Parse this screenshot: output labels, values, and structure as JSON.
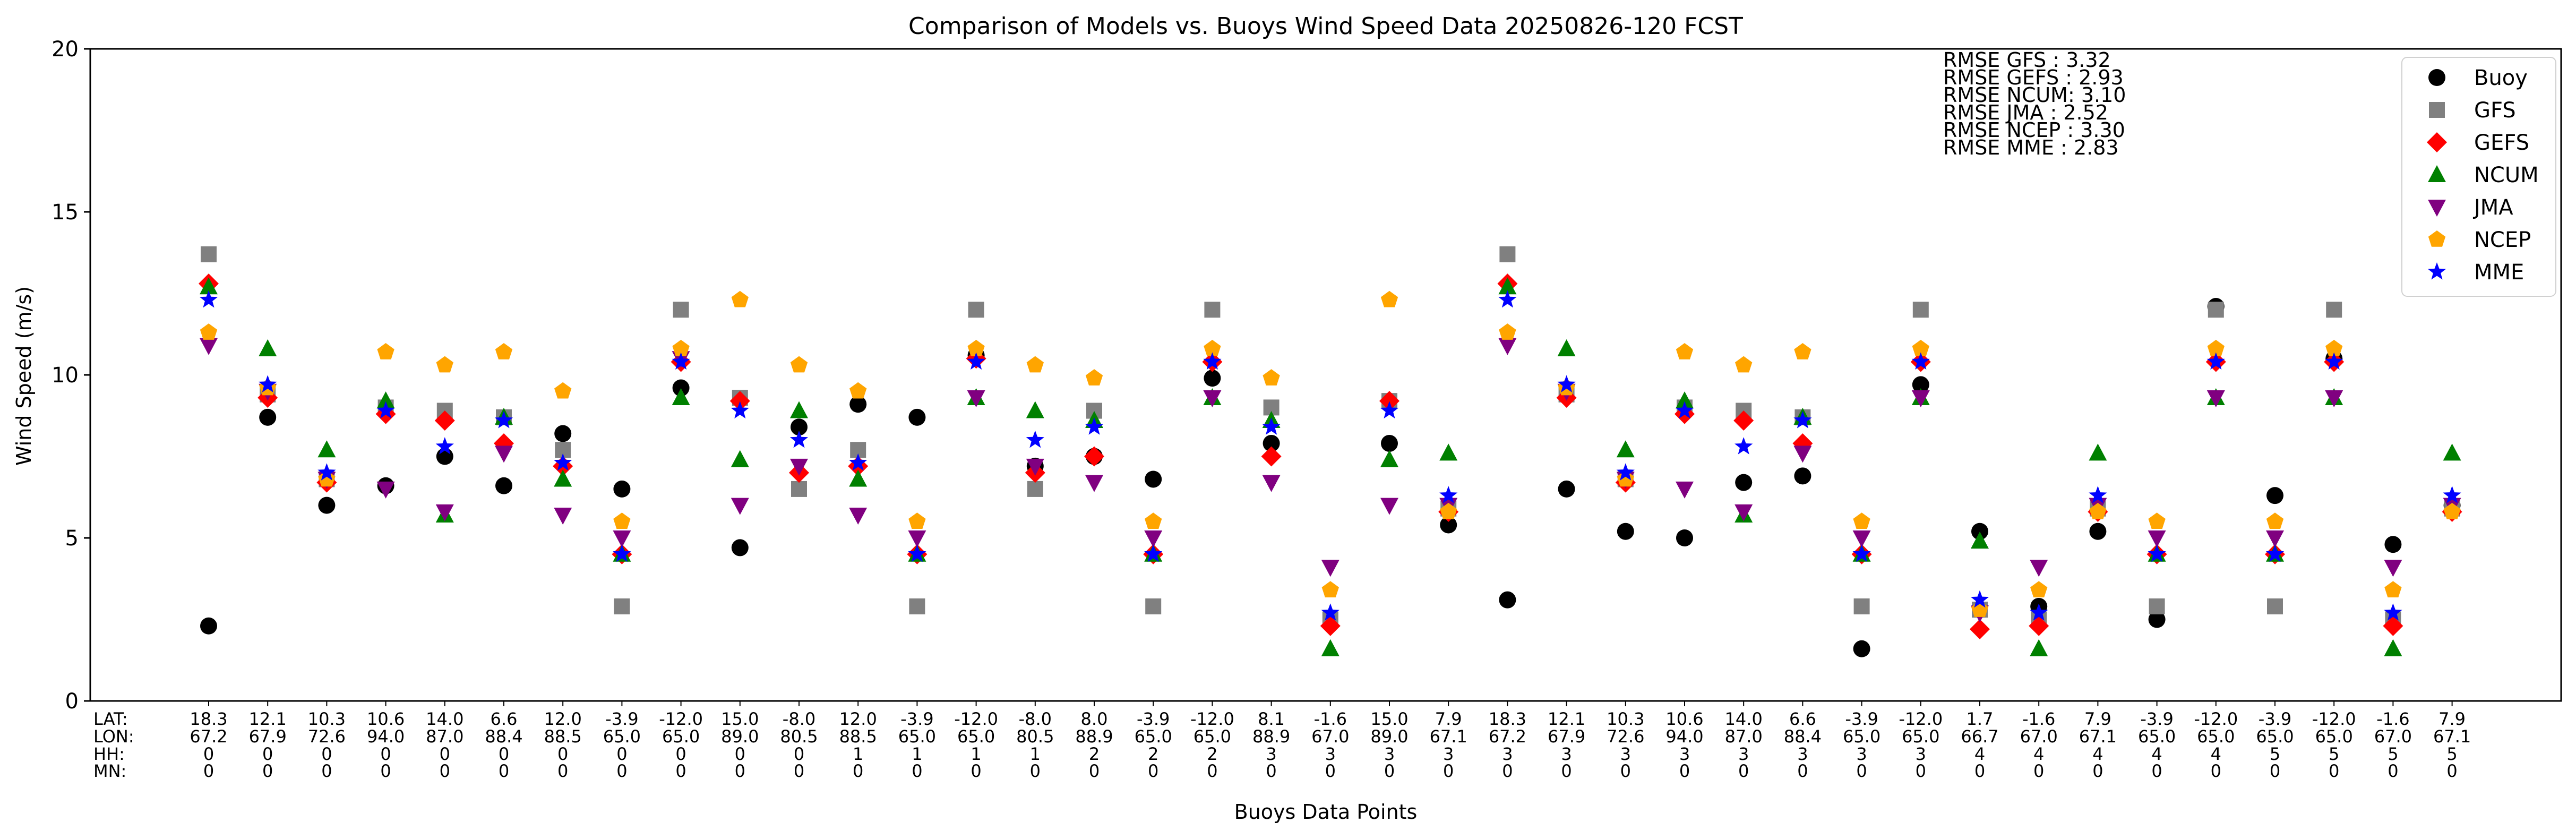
{
  "chart_data": {
    "type": "scatter",
    "title": "Comparison of Models vs. Buoys Wind Speed Data 20250826-120 FCST",
    "xlabel": "Buoys Data Points",
    "ylabel": "Wind Speed (m/s)",
    "ylim": [
      0,
      20
    ],
    "yticks": [
      "0",
      "5",
      "10",
      "15",
      "20"
    ],
    "grid": false,
    "legend_position": "top-right",
    "row_labels": [
      "LAT:",
      "LON:",
      "HH:",
      "MN:"
    ],
    "points": [
      {
        "lat": "18.3",
        "lon": "67.2",
        "hh": "0",
        "mn": "0"
      },
      {
        "lat": "12.1",
        "lon": "67.9",
        "hh": "0",
        "mn": "0"
      },
      {
        "lat": "10.3",
        "lon": "72.6",
        "hh": "0",
        "mn": "0"
      },
      {
        "lat": "10.6",
        "lon": "94.0",
        "hh": "0",
        "mn": "0"
      },
      {
        "lat": "14.0",
        "lon": "87.0",
        "hh": "0",
        "mn": "0"
      },
      {
        "lat": "6.6",
        "lon": "88.4",
        "hh": "0",
        "mn": "0"
      },
      {
        "lat": "12.0",
        "lon": "88.5",
        "hh": "0",
        "mn": "0"
      },
      {
        "lat": "-3.9",
        "lon": "65.0",
        "hh": "0",
        "mn": "0"
      },
      {
        "lat": "-12.0",
        "lon": "65.0",
        "hh": "0",
        "mn": "0"
      },
      {
        "lat": "15.0",
        "lon": "89.0",
        "hh": "0",
        "mn": "0"
      },
      {
        "lat": "-8.0",
        "lon": "80.5",
        "hh": "0",
        "mn": "0"
      },
      {
        "lat": "12.0",
        "lon": "88.5",
        "hh": "1",
        "mn": "0"
      },
      {
        "lat": "-3.9",
        "lon": "65.0",
        "hh": "1",
        "mn": "0"
      },
      {
        "lat": "-12.0",
        "lon": "65.0",
        "hh": "1",
        "mn": "0"
      },
      {
        "lat": "-8.0",
        "lon": "80.5",
        "hh": "1",
        "mn": "0"
      },
      {
        "lat": "8.0",
        "lon": "88.9",
        "hh": "2",
        "mn": "0"
      },
      {
        "lat": "-3.9",
        "lon": "65.0",
        "hh": "2",
        "mn": "0"
      },
      {
        "lat": "-12.0",
        "lon": "65.0",
        "hh": "2",
        "mn": "0"
      },
      {
        "lat": "8.1",
        "lon": "88.9",
        "hh": "3",
        "mn": "0"
      },
      {
        "lat": "-1.6",
        "lon": "67.0",
        "hh": "3",
        "mn": "0"
      },
      {
        "lat": "15.0",
        "lon": "89.0",
        "hh": "3",
        "mn": "0"
      },
      {
        "lat": "7.9",
        "lon": "67.1",
        "hh": "3",
        "mn": "0"
      },
      {
        "lat": "18.3",
        "lon": "67.2",
        "hh": "3",
        "mn": "0"
      },
      {
        "lat": "12.1",
        "lon": "67.9",
        "hh": "3",
        "mn": "0"
      },
      {
        "lat": "10.3",
        "lon": "72.6",
        "hh": "3",
        "mn": "0"
      },
      {
        "lat": "10.6",
        "lon": "94.0",
        "hh": "3",
        "mn": "0"
      },
      {
        "lat": "14.0",
        "lon": "87.0",
        "hh": "3",
        "mn": "0"
      },
      {
        "lat": "6.6",
        "lon": "88.4",
        "hh": "3",
        "mn": "0"
      },
      {
        "lat": "-3.9",
        "lon": "65.0",
        "hh": "3",
        "mn": "0"
      },
      {
        "lat": "-12.0",
        "lon": "65.0",
        "hh": "3",
        "mn": "0"
      },
      {
        "lat": "1.7",
        "lon": "66.7",
        "hh": "4",
        "mn": "0"
      },
      {
        "lat": "-1.6",
        "lon": "67.0",
        "hh": "4",
        "mn": "0"
      },
      {
        "lat": "7.9",
        "lon": "67.1",
        "hh": "4",
        "mn": "0"
      },
      {
        "lat": "-3.9",
        "lon": "65.0",
        "hh": "4",
        "mn": "0"
      },
      {
        "lat": "-12.0",
        "lon": "65.0",
        "hh": "4",
        "mn": "0"
      },
      {
        "lat": "-3.9",
        "lon": "65.0",
        "hh": "5",
        "mn": "0"
      },
      {
        "lat": "-12.0",
        "lon": "65.0",
        "hh": "5",
        "mn": "0"
      },
      {
        "lat": "-1.6",
        "lon": "67.0",
        "hh": "5",
        "mn": "0"
      },
      {
        "lat": "7.9",
        "lon": "67.1",
        "hh": "5",
        "mn": "0"
      }
    ],
    "series": [
      {
        "name": "Buoy",
        "marker": "circle",
        "color": "#000000",
        "values": [
          2.3,
          8.7,
          6.0,
          6.6,
          7.5,
          6.6,
          8.2,
          6.5,
          9.6,
          4.7,
          8.4,
          9.1,
          8.7,
          10.6,
          7.2,
          7.5,
          6.8,
          9.9,
          7.9,
          null,
          7.9,
          5.4,
          3.1,
          6.5,
          5.2,
          5.0,
          6.7,
          6.9,
          1.6,
          9.7,
          5.2,
          2.9,
          5.2,
          2.5,
          12.1,
          6.3,
          10.5,
          4.8,
          6.0
        ]
      },
      {
        "name": "GFS",
        "marker": "square",
        "color": "#808080",
        "values": [
          13.7,
          9.4,
          6.8,
          9.0,
          8.9,
          8.7,
          7.7,
          2.9,
          12.0,
          9.3,
          6.5,
          7.7,
          2.9,
          12.0,
          6.5,
          8.9,
          2.9,
          12.0,
          9.0,
          2.5,
          9.2,
          5.9,
          13.7,
          9.4,
          6.8,
          9.0,
          8.9,
          8.7,
          2.9,
          12.0,
          2.8,
          2.5,
          5.9,
          2.9,
          12.0,
          2.9,
          12.0,
          2.5,
          5.9
        ]
      },
      {
        "name": "GEFS",
        "marker": "diamond",
        "color": "#ff0000",
        "values": [
          12.8,
          9.3,
          6.7,
          8.8,
          8.6,
          7.9,
          7.2,
          4.5,
          10.4,
          9.2,
          7.0,
          7.2,
          4.5,
          10.5,
          7.0,
          7.5,
          4.5,
          10.4,
          7.5,
          2.3,
          9.2,
          5.8,
          12.8,
          9.3,
          6.7,
          8.8,
          8.6,
          7.9,
          4.5,
          10.4,
          2.2,
          2.3,
          5.8,
          4.5,
          10.4,
          4.5,
          10.4,
          2.3,
          5.8
        ]
      },
      {
        "name": "NCUM",
        "marker": "triangle-up",
        "color": "#008000",
        "values": [
          12.7,
          10.8,
          7.7,
          9.2,
          5.7,
          8.7,
          6.8,
          4.5,
          9.3,
          7.4,
          8.9,
          6.8,
          4.5,
          9.3,
          8.9,
          8.6,
          4.5,
          9.3,
          8.6,
          1.6,
          7.4,
          7.6,
          12.7,
          10.8,
          7.7,
          9.2,
          5.7,
          8.7,
          4.5,
          9.3,
          4.9,
          1.6,
          7.6,
          4.5,
          9.3,
          4.5,
          9.3,
          1.6,
          7.6
        ]
      },
      {
        "name": "JMA",
        "marker": "triangle-down",
        "color": "#800080",
        "values": [
          10.9,
          9.5,
          6.8,
          6.5,
          5.8,
          7.6,
          5.7,
          5.0,
          10.5,
          6.0,
          7.2,
          5.7,
          5.0,
          9.3,
          7.2,
          6.7,
          5.0,
          9.3,
          6.7,
          4.1,
          6.0,
          6.0,
          10.9,
          9.5,
          6.8,
          6.5,
          5.8,
          7.6,
          5.0,
          9.3,
          2.7,
          4.1,
          6.0,
          5.0,
          9.3,
          5.0,
          9.3,
          4.1,
          6.0
        ]
      },
      {
        "name": "NCEP",
        "marker": "pentagon",
        "color": "#ffa500",
        "values": [
          11.3,
          9.6,
          6.8,
          10.7,
          10.3,
          10.7,
          9.5,
          5.5,
          10.8,
          12.3,
          10.3,
          9.5,
          5.5,
          10.8,
          10.3,
          9.9,
          5.5,
          10.8,
          9.9,
          3.4,
          12.3,
          5.8,
          11.3,
          9.6,
          6.8,
          10.7,
          10.3,
          10.7,
          5.5,
          10.8,
          2.8,
          3.4,
          5.8,
          5.5,
          10.8,
          5.5,
          10.8,
          3.4,
          5.8
        ]
      },
      {
        "name": "MME",
        "marker": "star",
        "color": "#0000ff",
        "values": [
          12.3,
          9.7,
          7.0,
          8.9,
          7.8,
          8.6,
          7.3,
          4.5,
          10.4,
          8.9,
          8.0,
          7.3,
          4.5,
          10.4,
          8.0,
          8.4,
          4.5,
          10.4,
          8.4,
          2.7,
          8.9,
          6.3,
          12.3,
          9.7,
          7.0,
          8.9,
          7.8,
          8.6,
          4.5,
          10.4,
          3.1,
          2.7,
          6.3,
          4.5,
          10.4,
          4.5,
          10.4,
          2.7,
          6.3
        ]
      }
    ],
    "annotations": [
      "RMSE GFS   : 3.32",
      "RMSE GEFS : 2.93",
      "RMSE NCUM: 3.10",
      "RMSE JMA    : 2.52",
      "RMSE NCEP : 3.30",
      "RMSE MME  : 2.83"
    ]
  }
}
